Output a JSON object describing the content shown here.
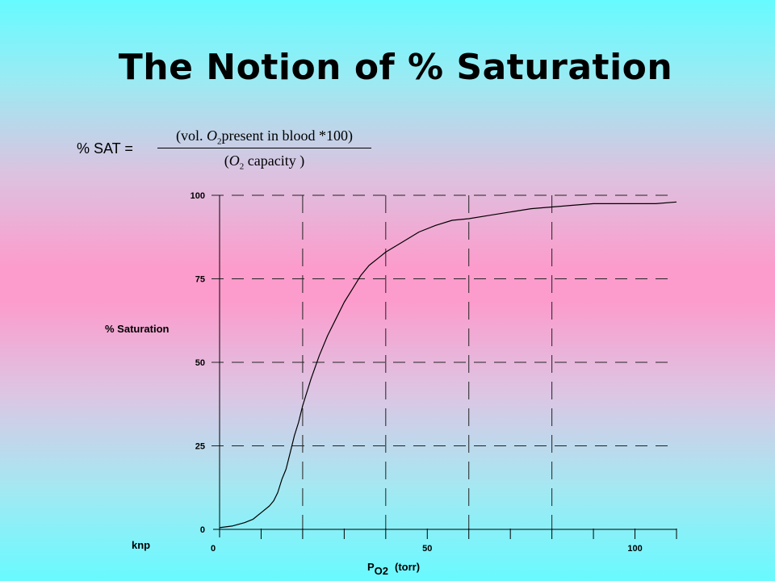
{
  "title": "The Notion of % Saturation",
  "formula": {
    "label": "% SAT  =",
    "numerator": {
      "before": "(vol. ",
      "o": "O",
      "sub": "2",
      "after": "present in blood *100)"
    },
    "denominator": {
      "before": "(",
      "o": "O",
      "sub": "2",
      "after": " capacity )"
    }
  },
  "chart_data": {
    "type": "line",
    "ylabel": "% Saturation",
    "xlabel_main": "P",
    "xlabel_sub": "O2",
    "xlabel_unit": "(torr)",
    "corner_label": "knp",
    "xlim": [
      0,
      110
    ],
    "ylim": [
      0,
      100
    ],
    "x_tick_labels": [
      {
        "value": 0,
        "label": "0"
      },
      {
        "value": 50,
        "label": "50"
      },
      {
        "value": 100,
        "label": "100"
      }
    ],
    "x_minor_ticks": [
      10,
      20,
      30,
      40,
      50,
      60,
      70,
      80,
      90,
      100,
      110
    ],
    "y_tick_labels": [
      {
        "value": 0,
        "label": "0"
      },
      {
        "value": 25,
        "label": "25"
      },
      {
        "value": 50,
        "label": "50"
      },
      {
        "value": 75,
        "label": "75"
      },
      {
        "value": 100,
        "label": "100"
      }
    ],
    "h_gridlines": [
      25,
      50,
      75,
      100
    ],
    "v_gridlines": [
      20,
      40,
      60,
      80
    ],
    "grid_style": "dashed",
    "series": [
      {
        "x": [
          0,
          3,
          6,
          8,
          10,
          12,
          13,
          14,
          15,
          16,
          17,
          18,
          19,
          20,
          22,
          24,
          26,
          28,
          30,
          32,
          34,
          36,
          38,
          40,
          44,
          48,
          52,
          56,
          60,
          65,
          70,
          75,
          80,
          85,
          90,
          95,
          100,
          105,
          110
        ],
        "y": [
          0.5,
          1,
          2,
          3,
          5,
          7,
          8.5,
          11,
          15,
          18,
          23,
          28,
          32,
          37,
          45,
          52,
          58,
          63,
          68,
          72,
          76,
          79,
          81,
          83,
          86,
          89,
          91,
          92.5,
          93,
          94,
          95,
          96,
          96.5,
          97,
          97.5,
          97.5,
          97.5,
          97.5,
          98
        ]
      }
    ]
  }
}
